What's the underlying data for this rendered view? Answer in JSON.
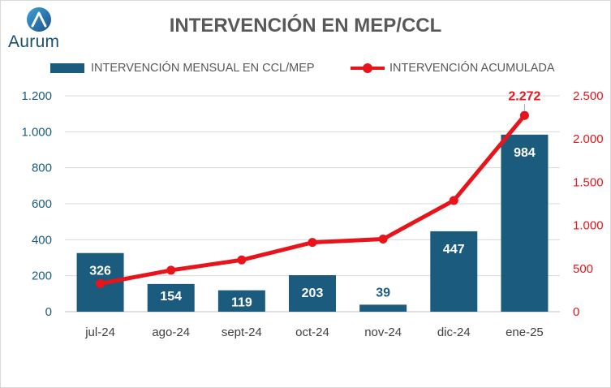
{
  "title": "INTERVENCIÓN EN MEP/CCL",
  "logo": {
    "text": "Aurum",
    "icon": "aurum-a-icon"
  },
  "legend": {
    "bar_label": "INTERVENCIÓN MENSUAL EN CCL/MEP",
    "line_label": "INTERVENCIÓN ACUMULADA"
  },
  "colors": {
    "bar": "#1b5c7e",
    "line": "#e8141b",
    "left_axis_text": "#1b5c7e",
    "right_axis_text": "#e8141b",
    "grid": "#d9d9d9"
  },
  "chart_data": {
    "type": "bar",
    "title": "INTERVENCIÓN EN MEP/CCL",
    "categories": [
      "jul-24",
      "ago-24",
      "sept-24",
      "oct-24",
      "nov-24",
      "dic-24",
      "ene-25"
    ],
    "series": [
      {
        "name": "INTERVENCIÓN MENSUAL EN CCL/MEP",
        "type": "bar",
        "axis": "left",
        "values": [
          326,
          154,
          119,
          203,
          39,
          447,
          984
        ],
        "labels": [
          "326",
          "154",
          "119",
          "203",
          "39",
          "447",
          "984"
        ]
      },
      {
        "name": "INTERVENCIÓN ACUMULADA",
        "type": "line",
        "axis": "right",
        "values": [
          326,
          480,
          599,
          802,
          841,
          1288,
          2272
        ],
        "point_label": {
          "index": 6,
          "text": "2.272"
        }
      }
    ],
    "y_left": {
      "lim": [
        0,
        1200
      ],
      "ticks": [
        0,
        200,
        400,
        600,
        800,
        1000,
        1200
      ],
      "tick_labels": [
        "0",
        "200",
        "400",
        "600",
        "800",
        "1.000",
        "1.200"
      ]
    },
    "y_right": {
      "lim": [
        0,
        2500
      ],
      "ticks": [
        0,
        500,
        1000,
        1500,
        2000,
        2500
      ],
      "tick_labels": [
        "0",
        "500",
        "1.000",
        "1.500",
        "2.000",
        "2.500"
      ]
    },
    "grid": true,
    "legend_position": "top"
  }
}
